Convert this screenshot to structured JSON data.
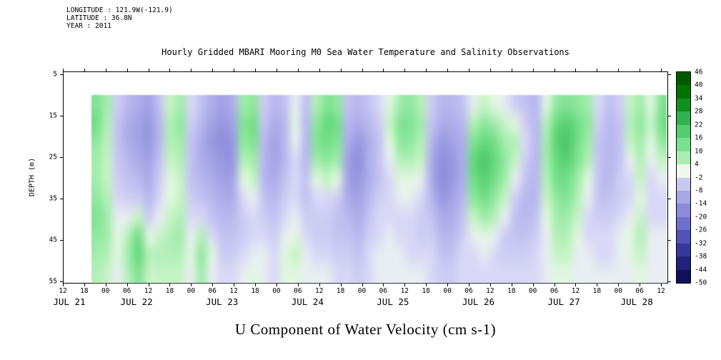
{
  "meta": {
    "lines": [
      "LONGITUDE : 121.9W(-121.9)",
      "LATITUDE : 36.8N",
      "YEAR : 2011"
    ]
  },
  "chart_data": {
    "type": "heatmap",
    "title": "Hourly Gridded MBARI Mooring M0 Sea Water Temperature and Salinity Observations",
    "variable": "U Component of Water Velocity (cm s-1)",
    "units": "cm s-1",
    "ylabel": "DEPTH (m)",
    "y_ticks": [
      5,
      15,
      25,
      35,
      45,
      55
    ],
    "y_range_m": [
      5,
      57
    ],
    "xlabel_dates": [
      "JUL 21",
      "JUL 22",
      "JUL 23",
      "JUL 24",
      "JUL 25",
      "JUL 26",
      "JUL 27",
      "JUL 28"
    ],
    "x_tick_labels": [
      "12",
      "18",
      "00",
      "06",
      "12",
      "18",
      "00",
      "06",
      "12",
      "18",
      "00",
      "06",
      "12",
      "18",
      "00",
      "06",
      "12",
      "18",
      "00",
      "06",
      "12",
      "18",
      "00",
      "06",
      "12",
      "18",
      "00",
      "06",
      "12"
    ],
    "time_start": "2011-07-21 20:00",
    "time_step_hours": 3,
    "depths_m": [
      10,
      15,
      20,
      25,
      30,
      35,
      40,
      45,
      50,
      55
    ],
    "colorbar_labels": [
      46,
      40,
      34,
      28,
      22,
      16,
      10,
      4,
      -2,
      -8,
      -14,
      -20,
      -26,
      -32,
      -38,
      -44,
      -50
    ],
    "colormap_stops": [
      [
        -50,
        "#0a0a4a"
      ],
      [
        -44,
        "#18186a"
      ],
      [
        -38,
        "#2c2c8c"
      ],
      [
        -32,
        "#4444aa"
      ],
      [
        -26,
        "#6060c4"
      ],
      [
        -20,
        "#7d7dd4"
      ],
      [
        -14,
        "#9898e0"
      ],
      [
        -8,
        "#b8b8ee"
      ],
      [
        -2,
        "#d8d8f6"
      ],
      [
        1,
        "#eef8ee"
      ],
      [
        4,
        "#c6f3c6"
      ],
      [
        10,
        "#90e8a0"
      ],
      [
        16,
        "#66d97e"
      ],
      [
        22,
        "#44c060"
      ],
      [
        28,
        "#22a044"
      ],
      [
        34,
        "#008000"
      ],
      [
        40,
        "#006600"
      ],
      [
        46,
        "#004d00"
      ]
    ],
    "values_by_time": [
      [
        12,
        14,
        10,
        8,
        8,
        10,
        12,
        10,
        8,
        6
      ],
      [
        8,
        6,
        5,
        4,
        4,
        6,
        8,
        8,
        6,
        4
      ],
      [
        -4,
        -6,
        -6,
        -5,
        -4,
        -2,
        0,
        2,
        2,
        0
      ],
      [
        -8,
        -10,
        -10,
        -8,
        -6,
        -4,
        0,
        6,
        8,
        6
      ],
      [
        -10,
        -12,
        -12,
        -10,
        -8,
        -4,
        4,
        14,
        16,
        12
      ],
      [
        -12,
        -14,
        -14,
        -12,
        -10,
        -8,
        -4,
        2,
        6,
        4
      ],
      [
        -6,
        -8,
        -8,
        -6,
        -4,
        -2,
        0,
        4,
        6,
        4
      ],
      [
        4,
        6,
        6,
        4,
        2,
        2,
        4,
        6,
        6,
        4
      ],
      [
        8,
        10,
        8,
        6,
        4,
        4,
        6,
        8,
        6,
        4
      ],
      [
        -2,
        -4,
        -6,
        -6,
        -6,
        -4,
        -2,
        0,
        2,
        0
      ],
      [
        -6,
        -8,
        -10,
        -10,
        -8,
        -6,
        -2,
        6,
        10,
        8
      ],
      [
        -10,
        -12,
        -14,
        -12,
        -10,
        -8,
        -6,
        -2,
        2,
        0
      ],
      [
        -12,
        -14,
        -16,
        -14,
        -12,
        -10,
        -8,
        -6,
        -4,
        -2
      ],
      [
        -10,
        -12,
        -14,
        -14,
        -12,
        -10,
        -8,
        -6,
        -4,
        -2
      ],
      [
        8,
        12,
        10,
        6,
        2,
        -2,
        -4,
        -4,
        -2,
        0
      ],
      [
        10,
        14,
        12,
        8,
        4,
        0,
        -2,
        -2,
        0,
        2
      ],
      [
        -4,
        -6,
        -8,
        -8,
        -8,
        -6,
        -4,
        -2,
        0,
        0
      ],
      [
        -8,
        -10,
        -12,
        -12,
        -10,
        -8,
        -6,
        -4,
        -2,
        -2
      ],
      [
        -6,
        -8,
        -8,
        -8,
        -6,
        -4,
        -2,
        0,
        2,
        2
      ],
      [
        0,
        2,
        0,
        -2,
        -2,
        -2,
        0,
        2,
        4,
        2
      ],
      [
        -6,
        -8,
        -8,
        -8,
        -6,
        -6,
        -4,
        -2,
        0,
        0
      ],
      [
        6,
        10,
        12,
        8,
        2,
        -2,
        -4,
        -4,
        -2,
        0
      ],
      [
        12,
        16,
        14,
        10,
        4,
        -2,
        -4,
        -4,
        -2,
        0
      ],
      [
        10,
        14,
        12,
        8,
        2,
        -4,
        -6,
        -6,
        -4,
        -2
      ],
      [
        -6,
        -8,
        -10,
        -12,
        -12,
        -10,
        -8,
        -6,
        -4,
        -2
      ],
      [
        -8,
        -10,
        -14,
        -16,
        -14,
        -12,
        -10,
        -8,
        -6,
        -4
      ],
      [
        -6,
        -8,
        -10,
        -10,
        -10,
        -8,
        -6,
        -4,
        -2,
        -2
      ],
      [
        -2,
        -4,
        -6,
        -6,
        -6,
        -4,
        -2,
        -2,
        0,
        0
      ],
      [
        2,
        4,
        2,
        0,
        -2,
        -2,
        -2,
        0,
        0,
        0
      ],
      [
        8,
        12,
        10,
        6,
        2,
        0,
        -2,
        -2,
        0,
        0
      ],
      [
        10,
        12,
        10,
        6,
        2,
        0,
        -2,
        -2,
        -2,
        0
      ],
      [
        6,
        8,
        6,
        4,
        0,
        -2,
        -4,
        -4,
        -2,
        0
      ],
      [
        -4,
        -6,
        -8,
        -10,
        -10,
        -8,
        -6,
        -4,
        -2,
        -2
      ],
      [
        -8,
        -10,
        -14,
        -16,
        -16,
        -14,
        -10,
        -8,
        -6,
        -4
      ],
      [
        -8,
        -10,
        -12,
        -14,
        -14,
        -12,
        -10,
        -8,
        -6,
        -4
      ],
      [
        -6,
        -8,
        -10,
        -10,
        -10,
        -8,
        -6,
        -4,
        -2,
        -2
      ],
      [
        0,
        6,
        12,
        16,
        14,
        10,
        4,
        0,
        -2,
        -2
      ],
      [
        4,
        10,
        16,
        20,
        18,
        14,
        8,
        2,
        0,
        -2
      ],
      [
        2,
        8,
        14,
        16,
        14,
        10,
        6,
        0,
        -2,
        -2
      ],
      [
        0,
        4,
        8,
        10,
        8,
        4,
        0,
        -4,
        -4,
        -2
      ],
      [
        -4,
        2,
        6,
        4,
        0,
        -4,
        -6,
        -6,
        -4,
        -2
      ],
      [
        -6,
        -4,
        -2,
        -4,
        -6,
        -8,
        -8,
        -6,
        -4,
        -2
      ],
      [
        -8,
        -8,
        -8,
        -8,
        -8,
        -8,
        -6,
        -4,
        -2,
        -2
      ],
      [
        2,
        6,
        8,
        8,
        6,
        4,
        2,
        0,
        0,
        0
      ],
      [
        10,
        16,
        18,
        16,
        14,
        10,
        8,
        6,
        4,
        2
      ],
      [
        12,
        18,
        20,
        18,
        14,
        12,
        8,
        6,
        4,
        2
      ],
      [
        10,
        14,
        14,
        12,
        8,
        6,
        4,
        2,
        0,
        0
      ],
      [
        8,
        10,
        8,
        6,
        2,
        0,
        -2,
        -2,
        0,
        0
      ],
      [
        -2,
        -4,
        -6,
        -6,
        -6,
        -6,
        -4,
        -2,
        -2,
        0
      ],
      [
        -6,
        -8,
        -8,
        -8,
        -8,
        -6,
        -4,
        -2,
        -2,
        0
      ],
      [
        -4,
        -6,
        -6,
        -6,
        -4,
        -4,
        -2,
        0,
        0,
        0
      ],
      [
        4,
        6,
        4,
        0,
        -2,
        -2,
        0,
        2,
        2,
        0
      ],
      [
        8,
        10,
        8,
        6,
        4,
        2,
        4,
        6,
        4,
        2
      ],
      [
        2,
        4,
        2,
        0,
        -2,
        -2,
        -2,
        0,
        0,
        0
      ],
      [
        12,
        14,
        10,
        4,
        0,
        -2,
        -2,
        0,
        0,
        0
      ]
    ]
  }
}
